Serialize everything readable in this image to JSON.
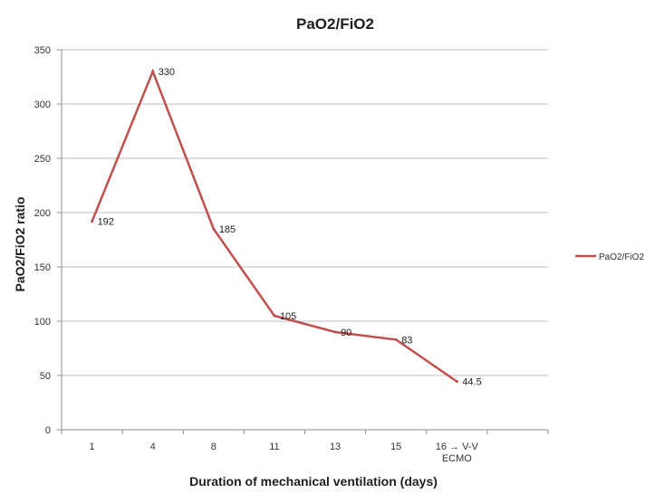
{
  "chart_data": {
    "type": "line",
    "title": "PaO2/FiO2",
    "xlabel": "Duration of mechanical ventilation (days)",
    "ylabel": "PaO2/FiO2 ratio",
    "categories": [
      "1",
      "4",
      "8",
      "11",
      "13",
      "15",
      "16 → V-V ECMO"
    ],
    "category_lines": [
      [
        "1"
      ],
      [
        "4"
      ],
      [
        "8"
      ],
      [
        "11"
      ],
      [
        "13"
      ],
      [
        "15"
      ],
      [
        "16 → V-V",
        "ECMO"
      ]
    ],
    "series": [
      {
        "name": "PaO2/FiO2",
        "values": [
          192,
          330,
          185,
          105,
          90,
          83,
          44.5
        ],
        "labels": [
          "192",
          "330",
          "185",
          "105",
          "90",
          "83",
          "44.5"
        ],
        "color": "#c0504d"
      }
    ],
    "ylim": [
      0,
      350
    ],
    "yticks": [
      0,
      50,
      100,
      150,
      200,
      250,
      300,
      350
    ],
    "grid": true,
    "legend_position": "right"
  }
}
